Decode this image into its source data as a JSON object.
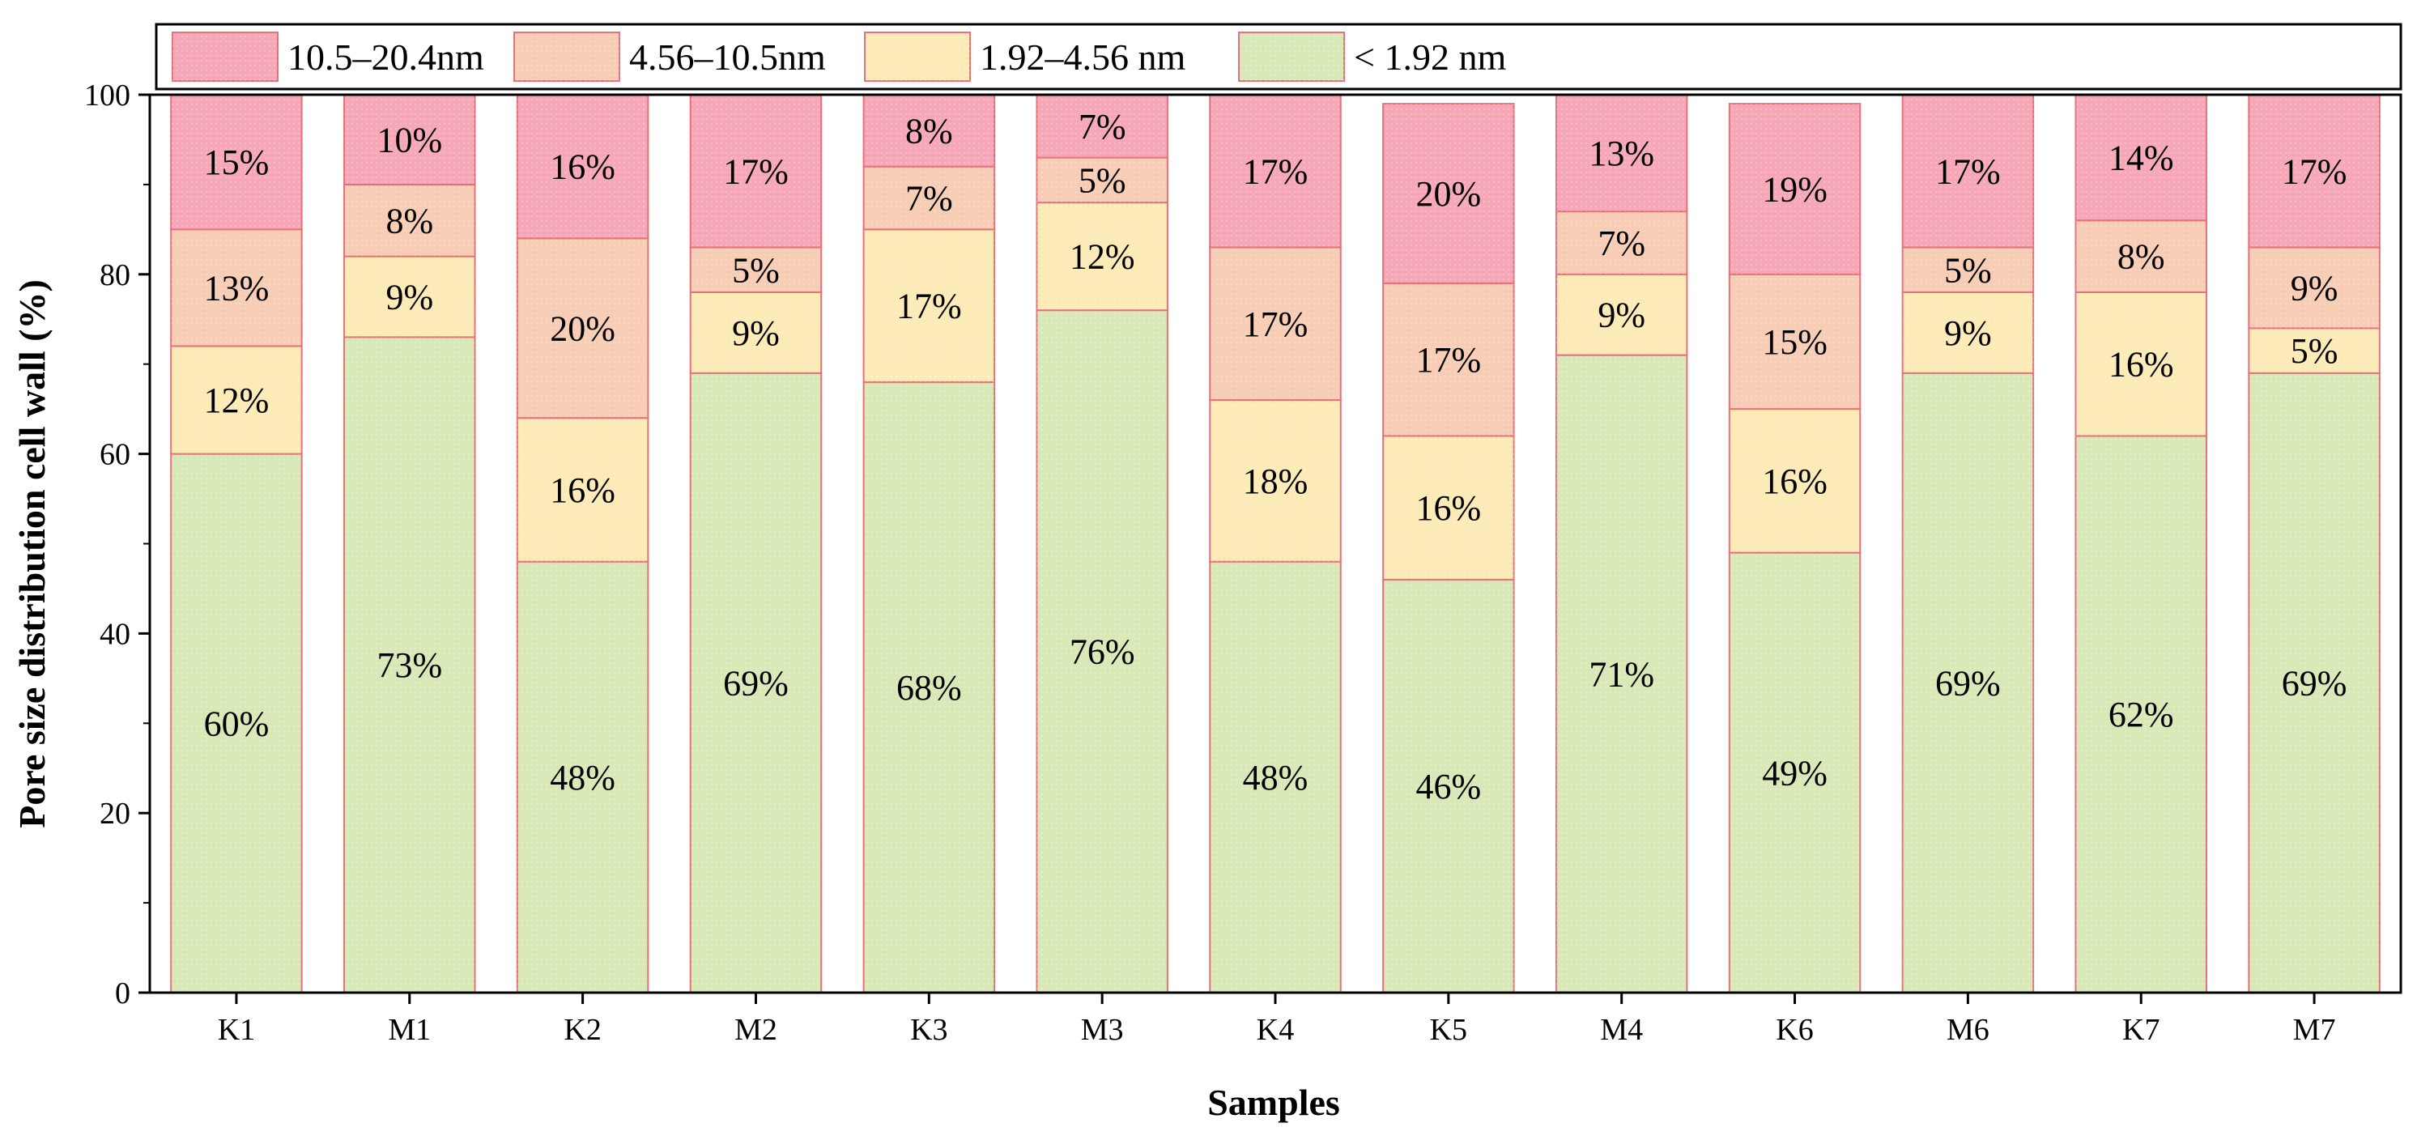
{
  "chart_data": {
    "type": "bar",
    "stacked": true,
    "xlabel": "Samples",
    "ylabel": "Pore size distribution cell wall (%)",
    "ylim": [
      0,
      100
    ],
    "yticks": [
      0,
      20,
      40,
      60,
      80,
      100
    ],
    "categories": [
      "K1",
      "M1",
      "K2",
      "M2",
      "K3",
      "M3",
      "K4",
      "K5",
      "M4",
      "K6",
      "M6",
      "K7",
      "M7"
    ],
    "series": [
      {
        "name": "< 1.92 nm",
        "color": "#d8e8b6",
        "values": [
          60,
          73,
          48,
          69,
          68,
          76,
          48,
          46,
          71,
          49,
          69,
          62,
          69
        ],
        "labels": [
          "60%",
          "73%",
          "48%",
          "69%",
          "68%",
          "76%",
          "48%",
          "46%",
          "71%",
          "49%",
          "69%",
          "62%",
          "69%"
        ]
      },
      {
        "name": "1.92–4.56 nm",
        "color": "#fcebb6",
        "values": [
          12,
          9,
          16,
          9,
          17,
          12,
          18,
          16,
          9,
          16,
          9,
          16,
          5
        ],
        "labels": [
          "12%",
          "9%",
          "16%",
          "9%",
          "17%",
          "12%",
          "18%",
          "16%",
          "9%",
          "16%",
          "9%",
          "16%",
          "5%"
        ]
      },
      {
        "name": "4.56–10.5nm",
        "color": "#f8cdb6",
        "values": [
          13,
          8,
          20,
          5,
          7,
          5,
          17,
          17,
          7,
          15,
          5,
          8,
          9
        ],
        "labels": [
          "13%",
          "8%",
          "20%",
          "5%",
          "7%",
          "5%",
          "17%",
          "17%",
          "7%",
          "15%",
          "5%",
          "8%",
          "9%"
        ]
      },
      {
        "name": "10.5–20.4nm",
        "color": "#f7a8b8",
        "values": [
          15,
          10,
          16,
          17,
          8,
          7,
          17,
          20,
          13,
          19,
          17,
          14,
          17
        ],
        "labels": [
          "15%",
          "10%",
          "16%",
          "17%",
          "8%",
          "7%",
          "17%",
          "20%",
          "13%",
          "19%",
          "17%",
          "14%",
          "17%"
        ]
      }
    ],
    "legend": {
      "placement": "top",
      "order": [
        "10.5–20.4nm",
        "4.56–10.5nm",
        "1.92–4.56 nm",
        "< 1.92 nm"
      ]
    },
    "bar_edge_color": "#e8707a"
  }
}
